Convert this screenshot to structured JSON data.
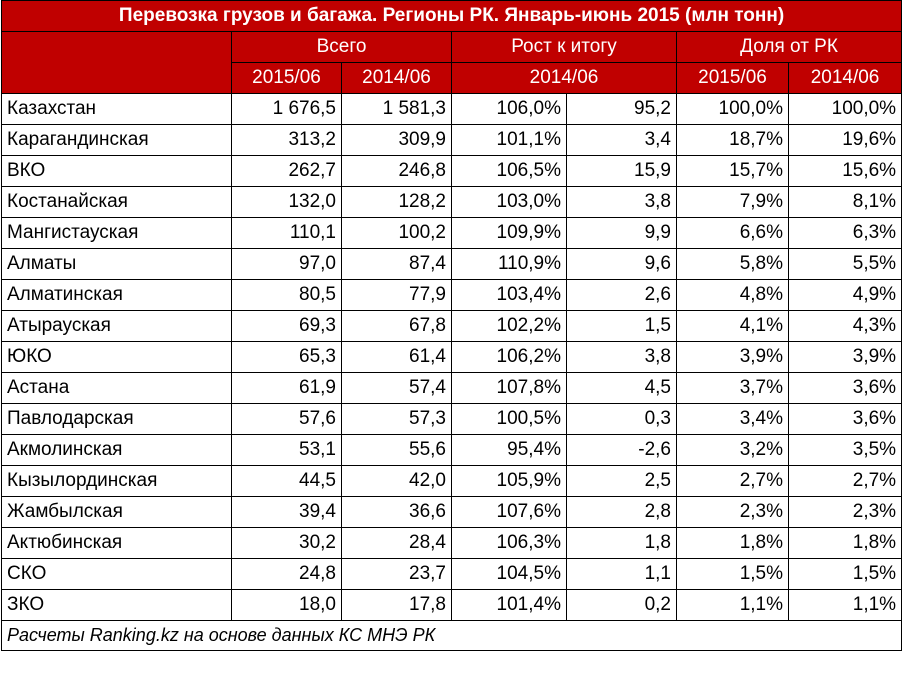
{
  "title": "Перевозка грузов и багажа. Регионы РК. Январь-июнь 2015 (млн тонн)",
  "header": {
    "total": "Всего",
    "growth": "Рост к итогу",
    "share": "Доля от РК",
    "y2015": "2015/06",
    "y2014": "2014/06",
    "growth_sub": "2014/06"
  },
  "rows": [
    [
      "Казахстан",
      "1 676,5",
      "1 581,3",
      "106,0%",
      "95,2",
      "100,0%",
      "100,0%"
    ],
    [
      "Карагандинская",
      "313,2",
      "309,9",
      "101,1%",
      "3,4",
      "18,7%",
      "19,6%"
    ],
    [
      "ВКО",
      "262,7",
      "246,8",
      "106,5%",
      "15,9",
      "15,7%",
      "15,6%"
    ],
    [
      "Костанайская",
      "132,0",
      "128,2",
      "103,0%",
      "3,8",
      "7,9%",
      "8,1%"
    ],
    [
      "Мангистауская",
      "110,1",
      "100,2",
      "109,9%",
      "9,9",
      "6,6%",
      "6,3%"
    ],
    [
      "Алматы",
      "97,0",
      "87,4",
      "110,9%",
      "9,6",
      "5,8%",
      "5,5%"
    ],
    [
      "Алматинская",
      "80,5",
      "77,9",
      "103,4%",
      "2,6",
      "4,8%",
      "4,9%"
    ],
    [
      "Атырауская",
      "69,3",
      "67,8",
      "102,2%",
      "1,5",
      "4,1%",
      "4,3%"
    ],
    [
      "ЮКО",
      "65,3",
      "61,4",
      "106,2%",
      "3,8",
      "3,9%",
      "3,9%"
    ],
    [
      "Астана",
      "61,9",
      "57,4",
      "107,8%",
      "4,5",
      "3,7%",
      "3,6%"
    ],
    [
      "Павлодарская",
      "57,6",
      "57,3",
      "100,5%",
      "0,3",
      "3,4%",
      "3,6%"
    ],
    [
      "Акмолинская",
      "53,1",
      "55,6",
      "95,4%",
      "-2,6",
      "3,2%",
      "3,5%"
    ],
    [
      "Кызылординская",
      "44,5",
      "42,0",
      "105,9%",
      "2,5",
      "2,7%",
      "2,7%"
    ],
    [
      "Жамбылская",
      "39,4",
      "36,6",
      "107,6%",
      "2,8",
      "2,3%",
      "2,3%"
    ],
    [
      "Актюбинская",
      "30,2",
      "28,4",
      "106,3%",
      "1,8",
      "1,8%",
      "1,8%"
    ],
    [
      "СКО",
      "24,8",
      "23,7",
      "104,5%",
      "1,1",
      "1,5%",
      "1,5%"
    ],
    [
      "ЗКО",
      "18,0",
      "17,8",
      "101,4%",
      "0,2",
      "1,1%",
      "1,1%"
    ]
  ],
  "footer": "Расчеты Ranking.kz на основе данных КС МНЭ РК"
}
